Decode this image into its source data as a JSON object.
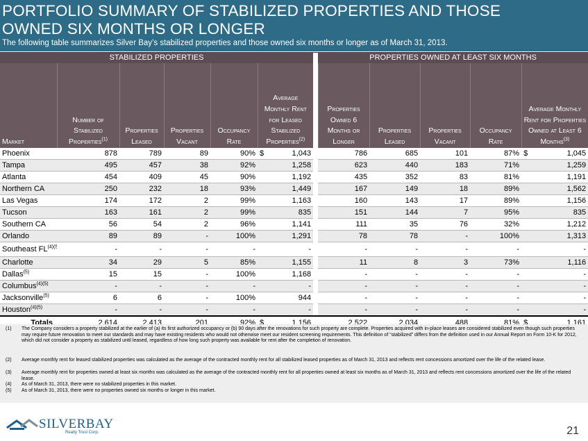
{
  "header": {
    "title": "PORTFOLIO SUMMARY OF STABILIZED PROPERTIES AND THOSE\nOWNED SIX MONTHS OR LONGER",
    "subtitle": "The following table summarizes Silver Bay’s stabilized properties and those owned six months or longer as of March 31, 2013."
  },
  "table": {
    "group_stabilized": "STABILIZED PROPERTIES",
    "group_owned": "PROPERTIES OWNED AT LEAST SIX MONTHS",
    "columns": {
      "market": "Market",
      "num_stabilized": "Number of Stabilized Properties",
      "num_stabilized_sup": "(1)",
      "leased": "Properties Leased",
      "vacant": "Properties Vacant",
      "occupancy": "Occupancy Rate",
      "avg_rent": "Average Monthly Rent for Leased Stabilized Properties",
      "avg_rent_sup": "(2)",
      "owned6": "Properties Owned 6 Months or Longer",
      "leased2": "Properties Leased",
      "vacant2": "Properties Vacant",
      "occupancy2": "Occupancy Rate",
      "avg_rent2": "Average Monthly Rent for Properties Owned at Least 6 Months",
      "avg_rent2_sup": "(3)"
    },
    "rows": [
      {
        "market": "Phoenix",
        "sup": "",
        "c1": "878",
        "c2": "789",
        "c3": "89",
        "c4": "90%",
        "d1": "$",
        "c5": "1,043",
        "c6": "786",
        "c7": "685",
        "c8": "101",
        "c9": "87%",
        "d2": "$",
        "c10": "1,045"
      },
      {
        "market": "Tampa",
        "sup": "",
        "c1": "495",
        "c2": "457",
        "c3": "38",
        "c4": "92%",
        "d1": "",
        "c5": "1,258",
        "c6": "623",
        "c7": "440",
        "c8": "183",
        "c9": "71%",
        "d2": "",
        "c10": "1,259"
      },
      {
        "market": "Atlanta",
        "sup": "",
        "c1": "454",
        "c2": "409",
        "c3": "45",
        "c4": "90%",
        "d1": "",
        "c5": "1,192",
        "c6": "435",
        "c7": "352",
        "c8": "83",
        "c9": "81%",
        "d2": "",
        "c10": "1,191"
      },
      {
        "market": "Northern CA",
        "sup": "",
        "c1": "250",
        "c2": "232",
        "c3": "18",
        "c4": "93%",
        "d1": "",
        "c5": "1,449",
        "c6": "167",
        "c7": "149",
        "c8": "18",
        "c9": "89%",
        "d2": "",
        "c10": "1,562"
      },
      {
        "market": "Las Vegas",
        "sup": "",
        "c1": "174",
        "c2": "172",
        "c3": "2",
        "c4": "99%",
        "d1": "",
        "c5": "1,163",
        "c6": "160",
        "c7": "143",
        "c8": "17",
        "c9": "89%",
        "d2": "",
        "c10": "1,156"
      },
      {
        "market": "Tucson",
        "sup": "",
        "c1": "163",
        "c2": "161",
        "c3": "2",
        "c4": "99%",
        "d1": "",
        "c5": "835",
        "c6": "151",
        "c7": "144",
        "c8": "7",
        "c9": "95%",
        "d2": "",
        "c10": "835"
      },
      {
        "market": "Southern CA",
        "sup": "",
        "c1": "56",
        "c2": "54",
        "c3": "2",
        "c4": "96%",
        "d1": "",
        "c5": "1,141",
        "c6": "111",
        "c7": "35",
        "c8": "76",
        "c9": "32%",
        "d2": "",
        "c10": "1,212"
      },
      {
        "market": "Orlando",
        "sup": "",
        "c1": "89",
        "c2": "89",
        "c3": "-",
        "c4": "100%",
        "d1": "",
        "c5": "1,291",
        "c6": "78",
        "c7": "78",
        "c8": "-",
        "c9": "100%",
        "d2": "",
        "c10": "1,313"
      },
      {
        "market": "Southeast FL",
        "sup": "(4)(5)",
        "c1": "-",
        "c2": "-",
        "c3": "-",
        "c4": "-",
        "d1": "",
        "c5": "-",
        "c6": "-",
        "c7": "-",
        "c8": "-",
        "c9": "-",
        "d2": "",
        "c10": "-"
      },
      {
        "market": "Charlotte",
        "sup": "",
        "c1": "34",
        "c2": "29",
        "c3": "5",
        "c4": "85%",
        "d1": "",
        "c5": "1,155",
        "c6": "11",
        "c7": "8",
        "c8": "3",
        "c9": "73%",
        "d2": "",
        "c10": "1,116"
      },
      {
        "market": "Dallas",
        "sup": "(5)",
        "c1": "15",
        "c2": "15",
        "c3": "-",
        "c4": "100%",
        "d1": "",
        "c5": "1,168",
        "c6": "-",
        "c7": "-",
        "c8": "-",
        "c9": "-",
        "d2": "",
        "c10": "-"
      },
      {
        "market": "Columbus",
        "sup": "(4)(5)",
        "c1": "-",
        "c2": "-",
        "c3": "-",
        "c4": "-",
        "d1": "",
        "c5": "-",
        "c6": "-",
        "c7": "-",
        "c8": "-",
        "c9": "-",
        "d2": "",
        "c10": "-"
      },
      {
        "market": "Jacksonville",
        "sup": "(5)",
        "c1": "6",
        "c2": "6",
        "c3": "-",
        "c4": "100%",
        "d1": "",
        "c5": "944",
        "c6": "-",
        "c7": "-",
        "c8": "-",
        "c9": "-",
        "d2": "",
        "c10": "-"
      },
      {
        "market": "Houston",
        "sup": "(4)(5)",
        "c1": "-",
        "c2": "-",
        "c3": "-",
        "c4": "-",
        "d1": "",
        "c5": "-",
        "c6": "-",
        "c7": "-",
        "c8": "-",
        "c9": "-",
        "d2": "",
        "c10": "-"
      }
    ],
    "totals": {
      "market": "Totals",
      "c1": "2,614",
      "c2": "2,413",
      "c3": "201",
      "c4": "92%",
      "d1": "$",
      "c5": "1,156",
      "c6": "2,522",
      "c7": "2,034",
      "c8": "488",
      "c9": "81%",
      "d2": "$",
      "c10": "1,161"
    }
  },
  "footnotes": [
    {
      "num": "(1)",
      "text": "The Company considers a property stabilized at the earlier of (a) its first authorized occupancy or (b) 90 days after the renovations for such property are complete. Properties acquired with in-place leases are considered stabilized even though such properties may require future renovation to meet our standards and may have existing residents who would not otherwise meet our resident screening requirements.  This definition of “stabilized” differs from the definition used in our Annual Report on Form 10-K for 2012, which did not consider a property as stabilized until leased, regardless of how long such property was available for rent after the completion of renovation."
    },
    {
      "num": "(2)",
      "text": "Average monthly rent for leased stabilized properties was calculated as the average of the contracted monthly rent for all stabilized leased properties as of March 31, 2013 and reflects rent concessions amortized over the life of the related lease."
    },
    {
      "num": "(3)",
      "text": "Average monthly rent for properties owned at least six months was calculated as the average of the contracted monthly rent for all properties owned at least six months as of March 31, 2013 and reflects rent concessions amortized over the life of the related lease."
    },
    {
      "num": "(4)",
      "text": "As of March 31, 2013, there were no stabilized properties in this market."
    },
    {
      "num": "(5)",
      "text": "As of March 31, 2013, there were no properties owned six months or longer in this market."
    }
  ],
  "footer": {
    "logo_text": "SILVERBAY",
    "logo_sub": "Realty Trust Corp.",
    "page_number": "21"
  },
  "colors": {
    "header_bg": "#2e6b86",
    "table_header_bg": "#6a5a5f",
    "group_header_bg": "#5c4d52",
    "row_alt_bg": "#eaeaea",
    "logo_blue": "#1f5f8b"
  }
}
